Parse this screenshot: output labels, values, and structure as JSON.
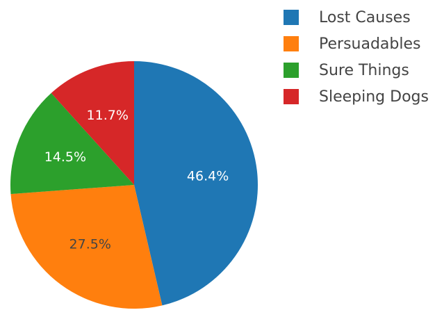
{
  "chart_data": {
    "type": "pie",
    "title": "",
    "labels": [
      "Lost Causes",
      "Persuadables",
      "Sure Things",
      "Sleeping Dogs"
    ],
    "values": [
      46.4,
      27.5,
      14.5,
      11.7
    ],
    "value_labels": [
      "46.4%",
      "27.5%",
      "14.5%",
      "11.7%"
    ],
    "colors": [
      "#1f77b4",
      "#ff7f0e",
      "#2ca02c",
      "#d62728"
    ],
    "label_text_colors": [
      "#ffffff",
      "#444444",
      "#ffffff",
      "#ffffff"
    ],
    "direction": "clockwise",
    "start": "top",
    "legend": {
      "position": "top-right",
      "order": [
        "Lost Causes",
        "Persuadables",
        "Sure Things",
        "Sleeping Dogs"
      ]
    }
  }
}
